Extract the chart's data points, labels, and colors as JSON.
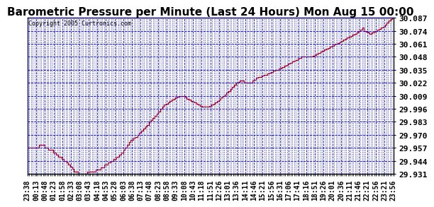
{
  "title": "Barometric Pressure per Minute (Last 24 Hours) Mon Aug 15 00:00",
  "copyright": "Copyright 2005 Curtronics.com",
  "ylabel_ticks": [
    29.931,
    29.944,
    29.957,
    29.97,
    29.983,
    29.996,
    30.009,
    30.022,
    30.035,
    30.048,
    30.061,
    30.074,
    30.087
  ],
  "ylim": [
    29.931,
    30.087
  ],
  "line_color": "#cc0000",
  "background_color": "#ffffff",
  "plot_bg_color": "#ffffff",
  "grid_color": "#0000cc",
  "title_fontsize": 11,
  "xlabel_fontsize": 7,
  "ylabel_fontsize": 8,
  "xtick_labels": [
    "23:38",
    "00:13",
    "00:48",
    "01:23",
    "01:58",
    "02:33",
    "03:08",
    "03:43",
    "04:18",
    "04:53",
    "05:28",
    "06:03",
    "06:38",
    "07:13",
    "07:48",
    "08:23",
    "08:58",
    "09:33",
    "10:08",
    "10:43",
    "11:18",
    "11:51",
    "12:26",
    "13:01",
    "13:36",
    "14:11",
    "14:46",
    "15:21",
    "15:56",
    "16:31",
    "17:06",
    "17:41",
    "18:16",
    "18:51",
    "19:26",
    "20:01",
    "20:36",
    "21:11",
    "21:46",
    "22:21",
    "22:56",
    "23:21",
    "23:56"
  ],
  "pressure_data": [
    29.957,
    29.957,
    29.957,
    29.957,
    29.957,
    29.957,
    29.957,
    29.957,
    29.957,
    29.957,
    29.957,
    29.957,
    29.96,
    29.96,
    29.96,
    29.96,
    29.96,
    29.96,
    29.957,
    29.957,
    29.957,
    29.957,
    29.955,
    29.955,
    29.955,
    29.955,
    29.955,
    29.952,
    29.952,
    29.952,
    29.95,
    29.95,
    29.948,
    29.948,
    29.948,
    29.948,
    29.946,
    29.946,
    29.944,
    29.944,
    29.944,
    29.942,
    29.942,
    29.94,
    29.94,
    29.938,
    29.938,
    29.936,
    29.936,
    29.933,
    29.933,
    29.933,
    29.933,
    29.931,
    29.931,
    29.931,
    29.931,
    29.931,
    29.931,
    29.931,
    29.931,
    29.931,
    29.931,
    29.933,
    29.933,
    29.933,
    29.933,
    29.933,
    29.933,
    29.933,
    29.933,
    29.933,
    29.935,
    29.935,
    29.935,
    29.935,
    29.935,
    29.937,
    29.937,
    29.937,
    29.937,
    29.94,
    29.94,
    29.94,
    29.94,
    29.942,
    29.942,
    29.942,
    29.944,
    29.944,
    29.944,
    29.946,
    29.946,
    29.946,
    29.948,
    29.948,
    29.948,
    29.95,
    29.95,
    29.952,
    29.952,
    29.955,
    29.955,
    29.957,
    29.957,
    29.96,
    29.96,
    29.963,
    29.963,
    29.965,
    29.965,
    29.965,
    29.967,
    29.967,
    29.968,
    29.968,
    29.97,
    29.97,
    29.972,
    29.972,
    29.974,
    29.974,
    29.976,
    29.976,
    29.978,
    29.978,
    29.98,
    29.98,
    29.983,
    29.983,
    29.985,
    29.985,
    29.987,
    29.987,
    29.989,
    29.989,
    29.991,
    29.991,
    29.993,
    29.993,
    29.996,
    29.996,
    29.998,
    29.998,
    30.0,
    30.0,
    30.001,
    30.001,
    30.002,
    30.002,
    30.004,
    30.004,
    30.005,
    30.005,
    30.006,
    30.006,
    30.007,
    30.007,
    30.008,
    30.008,
    30.009,
    30.009,
    30.009,
    30.009,
    30.009,
    30.009,
    30.008,
    30.008,
    30.006,
    30.006,
    30.005,
    30.005,
    30.004,
    30.004,
    30.003,
    30.003,
    30.002,
    30.002,
    30.001,
    30.001,
    30.0,
    30.0,
    29.999,
    29.999,
    29.998,
    29.998,
    29.998,
    29.998,
    29.998,
    29.998,
    29.998,
    29.998,
    29.999,
    29.999,
    30.0,
    30.0,
    30.001,
    30.001,
    30.002,
    30.002,
    30.004,
    30.004,
    30.005,
    30.005,
    30.007,
    30.007,
    30.009,
    30.009,
    30.01,
    30.01,
    30.012,
    30.012,
    30.014,
    30.014,
    30.016,
    30.016,
    30.018,
    30.018,
    30.02,
    30.02,
    30.022,
    30.022,
    30.023,
    30.023,
    30.024,
    30.024,
    30.024,
    30.024,
    30.022,
    30.022,
    30.022,
    30.022,
    30.022,
    30.022,
    30.022,
    30.022,
    30.022,
    30.024,
    30.024,
    30.025,
    30.025,
    30.027,
    30.027,
    30.028,
    30.028,
    30.028,
    30.028,
    30.029,
    30.029,
    30.03,
    30.03,
    30.03,
    30.03,
    30.031,
    30.031,
    30.032,
    30.032,
    30.033,
    30.033,
    30.034,
    30.034,
    30.035,
    30.035,
    30.035,
    30.035,
    30.036,
    30.036,
    30.037,
    30.037,
    30.038,
    30.038,
    30.039,
    30.039,
    30.04,
    30.04,
    30.041,
    30.041,
    30.042,
    30.042,
    30.043,
    30.043,
    30.044,
    30.044,
    30.045,
    30.045,
    30.046,
    30.046,
    30.047,
    30.047,
    30.048,
    30.048,
    30.048,
    30.048,
    30.048,
    30.048,
    30.048,
    30.048,
    30.048,
    30.048,
    30.048,
    30.048,
    30.049,
    30.049,
    30.05,
    30.05,
    30.051,
    30.051,
    30.052,
    30.052,
    30.053,
    30.053,
    30.054,
    30.054,
    30.055,
    30.055,
    30.056,
    30.056,
    30.057,
    30.057,
    30.058,
    30.058,
    30.059,
    30.059,
    30.06,
    30.06,
    30.061,
    30.061,
    30.062,
    30.062,
    30.063,
    30.063,
    30.064,
    30.064,
    30.065,
    30.065,
    30.066,
    30.066,
    30.067,
    30.067,
    30.068,
    30.068,
    30.069,
    30.069,
    30.07,
    30.07,
    30.071,
    30.071,
    30.072,
    30.072,
    30.074,
    30.074,
    30.075,
    30.075,
    30.077,
    30.077,
    30.074,
    30.074,
    30.073,
    30.073,
    30.072,
    30.072,
    30.071,
    30.071,
    30.072,
    30.072,
    30.073,
    30.073,
    30.074,
    30.074,
    30.075,
    30.075,
    30.076,
    30.076,
    30.077,
    30.077,
    30.078,
    30.078,
    30.08,
    30.08,
    30.082,
    30.082,
    30.084,
    30.084,
    30.086,
    30.086,
    30.087,
    30.087
  ]
}
